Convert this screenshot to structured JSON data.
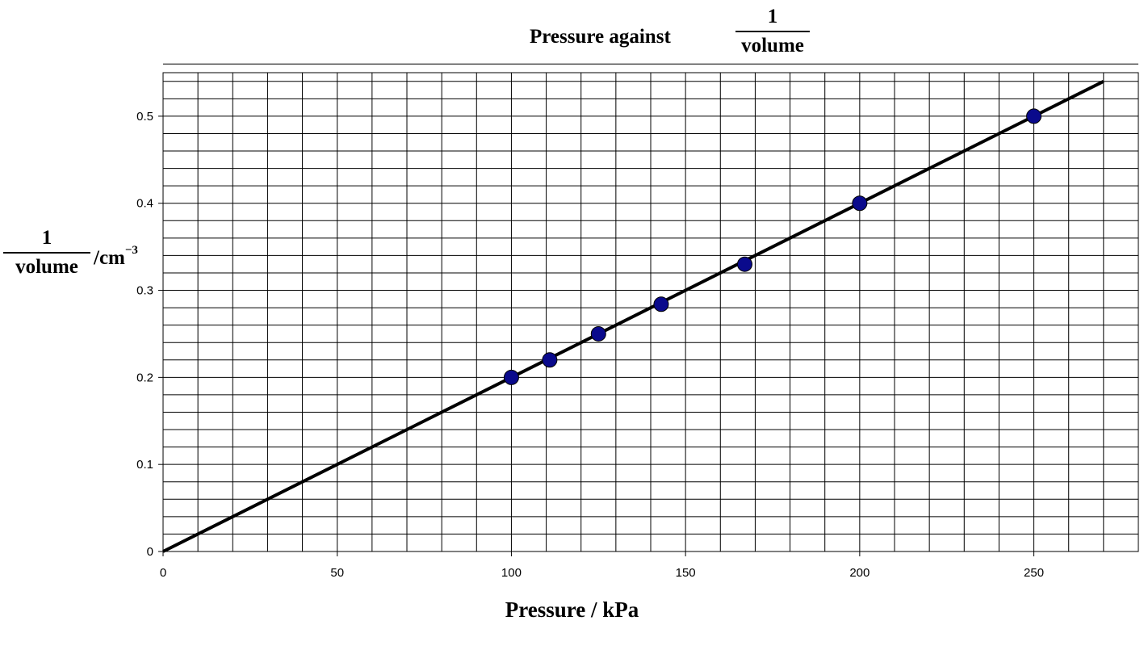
{
  "chart_data": {
    "type": "scatter",
    "title": {
      "lead": "Pressure against",
      "fraction_numerator": "1",
      "fraction_denominator": "volume"
    },
    "xlabel": "Pressure / kPa",
    "ylabel": {
      "fraction_numerator": "1",
      "fraction_denominator": "volume",
      "unit": "/cm",
      "unit_exponent": "−3"
    },
    "xlim": [
      0,
      280
    ],
    "ylim": [
      0,
      0.55
    ],
    "x_ticks": [
      0,
      50,
      100,
      150,
      200,
      250
    ],
    "x_tick_labels": [
      "0",
      "50",
      "100",
      "150",
      "200",
      "250"
    ],
    "y_ticks": [
      0,
      0.1,
      0.2,
      0.3,
      0.4,
      0.5
    ],
    "y_tick_labels": [
      "0",
      "0.1",
      "0.2",
      "0.3",
      "0.4",
      "0.5"
    ],
    "grid": true,
    "x_minor_step": 10,
    "y_minor_step": 0.02,
    "points": [
      {
        "x": 100,
        "y": 0.2
      },
      {
        "x": 111,
        "y": 0.22
      },
      {
        "x": 125,
        "y": 0.25
      },
      {
        "x": 143,
        "y": 0.284
      },
      {
        "x": 167,
        "y": 0.33
      },
      {
        "x": 200,
        "y": 0.4
      },
      {
        "x": 250,
        "y": 0.5
      }
    ],
    "fit_line": {
      "x": [
        0,
        270
      ],
      "y": [
        0,
        0.54
      ]
    },
    "colors": {
      "point": "#0a0a8c",
      "line": "#000000",
      "grid": "#000000"
    }
  }
}
